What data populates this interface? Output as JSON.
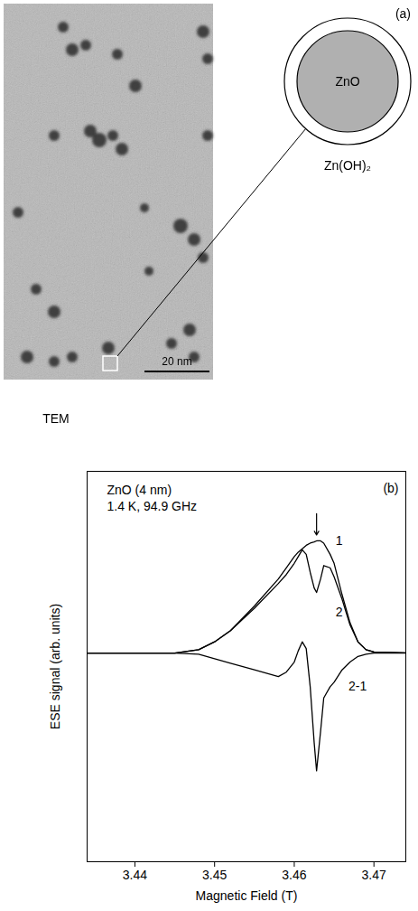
{
  "panel_a": {
    "label": "(a)",
    "image_caption": "TEM",
    "scale_bar": "20 nm",
    "core_label": "ZnO",
    "shell_label": "Zn(OH)₂"
  },
  "chart_data": {
    "type": "line",
    "title": "ZnO (4 nm)",
    "subtitle": "1.4 K, 94.9 GHz",
    "panel_label": "(b)",
    "x_label": "Magnetic Field (T)",
    "y_label": "ESE signal (arb. units)",
    "x": [
      3.434,
      3.445,
      3.448,
      3.45,
      3.452,
      3.455,
      3.458,
      3.459,
      3.46,
      3.4605,
      3.461,
      3.4615,
      3.462,
      3.4625,
      3.4628,
      3.4633,
      3.4637,
      3.4645,
      3.465,
      3.466,
      3.467,
      3.468,
      3.469,
      3.47,
      3.475
    ],
    "series": [
      {
        "name": "1",
        "color": "#000000",
        "label_x": 3.4652,
        "label_y": 1.0,
        "values": [
          0,
          0,
          0.03,
          0.1,
          0.2,
          0.42,
          0.66,
          0.76,
          0.86,
          0.9,
          0.93,
          0.96,
          0.98,
          0.99,
          1.0,
          1.0,
          0.98,
          0.88,
          0.8,
          0.52,
          0.27,
          0.1,
          0.03,
          0.01,
          0
        ]
      },
      {
        "name": "2",
        "color": "#000000",
        "label_x": 3.4652,
        "label_y": 0.36,
        "values": [
          0,
          0,
          0.03,
          0.1,
          0.2,
          0.4,
          0.62,
          0.7,
          0.8,
          0.86,
          0.92,
          0.88,
          0.72,
          0.58,
          0.54,
          0.66,
          0.78,
          0.76,
          0.68,
          0.48,
          0.25,
          0.1,
          0.03,
          0.01,
          0
        ]
      },
      {
        "name": "2-1",
        "color": "#000000",
        "label_x": 3.4668,
        "label_y": -0.3,
        "values": [
          0,
          0,
          -0.01,
          -0.05,
          -0.09,
          -0.15,
          -0.21,
          -0.17,
          -0.08,
          0.02,
          0.1,
          0.04,
          -0.3,
          -0.8,
          -1.05,
          -0.7,
          -0.4,
          -0.3,
          -0.26,
          -0.15,
          -0.08,
          -0.03,
          -0.01,
          0,
          0
        ]
      }
    ],
    "xlim": [
      3.434,
      3.474
    ],
    "xticks": [
      3.44,
      3.45,
      3.46,
      3.47
    ],
    "ylim": [
      -1.86,
      1.62
    ],
    "yticks": [],
    "tick_labels": "x",
    "grid": false
  }
}
